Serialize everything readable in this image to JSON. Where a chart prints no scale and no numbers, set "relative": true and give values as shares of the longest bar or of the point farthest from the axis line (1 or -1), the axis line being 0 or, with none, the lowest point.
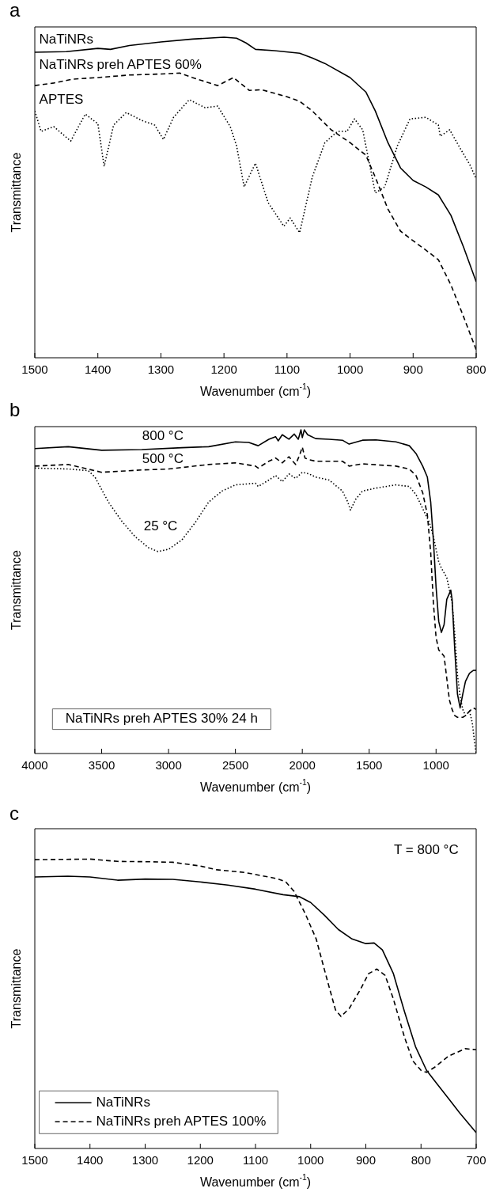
{
  "chart_data": [
    {
      "type": "line",
      "title": "a",
      "xlabel": "Wavenumber (cm$^{-1}$)",
      "ylabel": "Transmittance",
      "relative": true,
      "xlim": [
        1500,
        800
      ],
      "xticks": [
        1500,
        1400,
        1300,
        1200,
        1100,
        1000,
        900,
        800
      ],
      "series": [
        {
          "name": "NaTiNRs",
          "color": "#000000",
          "line_style": "solid",
          "x": [
            1500,
            1450,
            1400,
            1380,
            1350,
            1300,
            1250,
            1200,
            1180,
            1165,
            1150,
            1120,
            1080,
            1060,
            1040,
            1000,
            975,
            960,
            940,
            920,
            900,
            880,
            860,
            840,
            820,
            800
          ],
          "values": [
            0.953,
            0.955,
            0.965,
            0.962,
            0.974,
            0.985,
            0.994,
            1.0,
            0.997,
            0.982,
            0.962,
            0.958,
            0.95,
            0.935,
            0.918,
            0.874,
            0.829,
            0.77,
            0.671,
            0.592,
            0.553,
            0.533,
            0.508,
            0.444,
            0.345,
            0.237
          ]
        },
        {
          "name": "NaTiNRs preh APTES 60%",
          "color": "#000000",
          "line_style": "dashed",
          "x": [
            1500,
            1470,
            1440,
            1400,
            1350,
            1300,
            1270,
            1250,
            1210,
            1185,
            1160,
            1140,
            1100,
            1080,
            1060,
            1030,
            1000,
            975,
            960,
            940,
            920,
            900,
            880,
            860,
            840,
            820,
            800
          ],
          "values": [
            0.849,
            0.857,
            0.869,
            0.874,
            0.882,
            0.885,
            0.888,
            0.874,
            0.849,
            0.874,
            0.834,
            0.836,
            0.814,
            0.8,
            0.77,
            0.711,
            0.671,
            0.632,
            0.563,
            0.464,
            0.395,
            0.365,
            0.336,
            0.306,
            0.227,
            0.128,
            0.025
          ]
        },
        {
          "name": "APTES",
          "color": "#000000",
          "line_style": "dotted",
          "x": [
            1500,
            1490,
            1470,
            1443,
            1420,
            1400,
            1390,
            1375,
            1355,
            1330,
            1310,
            1296,
            1280,
            1255,
            1230,
            1210,
            1190,
            1180,
            1168,
            1150,
            1130,
            1105,
            1095,
            1080,
            1060,
            1040,
            1020,
            1005,
            993,
            980,
            960,
            945,
            925,
            905,
            880,
            860,
            857,
            842,
            825,
            810,
            800
          ],
          "values": [
            0.77,
            0.706,
            0.721,
            0.676,
            0.76,
            0.73,
            0.597,
            0.726,
            0.765,
            0.74,
            0.726,
            0.681,
            0.75,
            0.805,
            0.78,
            0.785,
            0.721,
            0.661,
            0.533,
            0.607,
            0.484,
            0.41,
            0.436,
            0.39,
            0.563,
            0.671,
            0.706,
            0.706,
            0.745,
            0.711,
            0.514,
            0.533,
            0.661,
            0.745,
            0.75,
            0.726,
            0.691,
            0.711,
            0.652,
            0.602,
            0.558
          ]
        }
      ]
    },
    {
      "type": "line",
      "title": "b",
      "xlabel": "Wavenumber (cm$^{-1}$)",
      "ylabel": "Transmittance",
      "relative": true,
      "xlim": [
        4000,
        700
      ],
      "xticks": [
        4000,
        3500,
        3000,
        2500,
        2000,
        1500,
        1000
      ],
      "series": [
        {
          "name": "800 °C",
          "color": "#000000",
          "line_style": "solid",
          "x": [
            4000,
            3750,
            3500,
            3200,
            2900,
            2700,
            2500,
            2400,
            2330,
            2250,
            2200,
            2180,
            2150,
            2100,
            2060,
            2030,
            2010,
            2000,
            1985,
            1960,
            1900,
            1800,
            1700,
            1650,
            1550,
            1450,
            1300,
            1200,
            1150,
            1100,
            1065,
            1040,
            1020,
            1000,
            980,
            960,
            940,
            920,
            900,
            890,
            880,
            860,
            840,
            820,
            800,
            780,
            750,
            720,
            700
          ],
          "values": [
            0.942,
            0.948,
            0.937,
            0.939,
            0.945,
            0.948,
            0.963,
            0.961,
            0.951,
            0.971,
            0.979,
            0.966,
            0.985,
            0.971,
            0.987,
            0.971,
            1.0,
            0.976,
            1.0,
            0.985,
            0.973,
            0.971,
            0.968,
            0.956,
            0.968,
            0.969,
            0.963,
            0.951,
            0.927,
            0.888,
            0.854,
            0.777,
            0.66,
            0.515,
            0.408,
            0.374,
            0.398,
            0.476,
            0.495,
            0.505,
            0.476,
            0.32,
            0.184,
            0.141,
            0.184,
            0.223,
            0.248,
            0.257,
            0.257
          ]
        },
        {
          "name": "500 °C",
          "color": "#000000",
          "line_style": "dashed",
          "x": [
            4000,
            3750,
            3500,
            3200,
            3000,
            2700,
            2500,
            2350,
            2330,
            2250,
            2200,
            2150,
            2100,
            2050,
            2020,
            2000,
            1980,
            1950,
            1900,
            1700,
            1650,
            1550,
            1300,
            1200,
            1150,
            1100,
            1065,
            1040,
            1020,
            1000,
            980,
            960,
            940,
            920,
            900,
            880,
            860,
            840,
            800,
            780,
            750,
            720,
            700
          ],
          "values": [
            0.888,
            0.893,
            0.869,
            0.876,
            0.879,
            0.893,
            0.898,
            0.888,
            0.882,
            0.903,
            0.913,
            0.898,
            0.917,
            0.893,
            0.922,
            0.947,
            0.913,
            0.908,
            0.903,
            0.903,
            0.888,
            0.895,
            0.888,
            0.879,
            0.859,
            0.806,
            0.738,
            0.621,
            0.466,
            0.359,
            0.32,
            0.311,
            0.301,
            0.233,
            0.165,
            0.136,
            0.117,
            0.112,
            0.112,
            0.117,
            0.131,
            0.141,
            0.136
          ]
        },
        {
          "name": "25 °C",
          "color": "#000000",
          "line_style": "dotted",
          "x": [
            4000,
            3750,
            3600,
            3550,
            3450,
            3350,
            3250,
            3150,
            3080,
            3000,
            2900,
            2800,
            2700,
            2600,
            2500,
            2350,
            2330,
            2250,
            2200,
            2150,
            2100,
            2050,
            2000,
            1950,
            1900,
            1800,
            1700,
            1660,
            1640,
            1600,
            1550,
            1450,
            1300,
            1200,
            1150,
            1100,
            1050,
            1020,
            1000,
            980,
            960,
            920,
            900,
            880,
            860,
            840,
            820,
            800,
            780,
            750,
            730,
            710,
            700
          ],
          "values": [
            0.882,
            0.879,
            0.874,
            0.854,
            0.777,
            0.718,
            0.67,
            0.636,
            0.624,
            0.631,
            0.66,
            0.714,
            0.777,
            0.811,
            0.83,
            0.835,
            0.825,
            0.845,
            0.859,
            0.84,
            0.864,
            0.85,
            0.869,
            0.864,
            0.854,
            0.845,
            0.811,
            0.777,
            0.752,
            0.786,
            0.811,
            0.82,
            0.83,
            0.825,
            0.8,
            0.757,
            0.714,
            0.67,
            0.631,
            0.592,
            0.573,
            0.544,
            0.505,
            0.466,
            0.369,
            0.243,
            0.175,
            0.136,
            0.117,
            0.131,
            0.097,
            0.029,
            0.0
          ]
        }
      ],
      "annotations": [
        "NaTiNRs preh APTES 30% 24 h"
      ]
    },
    {
      "type": "line",
      "title": "c",
      "xlabel": "Wavenumber (cm$^{-1}$)",
      "ylabel": "Transmittance",
      "relative": true,
      "xlim": [
        1500,
        700
      ],
      "xticks": [
        1500,
        1400,
        1300,
        1200,
        1100,
        1000,
        900,
        800,
        700
      ],
      "legend": "bottom left",
      "series": [
        {
          "name": "NaTiNRs",
          "color": "#000000",
          "line_style": "solid",
          "x": [
            1500,
            1440,
            1400,
            1350,
            1300,
            1250,
            1200,
            1150,
            1100,
            1050,
            1020,
            1000,
            975,
            950,
            925,
            900,
            885,
            870,
            850,
            830,
            810,
            790,
            770,
            750,
            730,
            700
          ],
          "values": [
            0.938,
            0.941,
            0.938,
            0.927,
            0.931,
            0.93,
            0.921,
            0.91,
            0.896,
            0.877,
            0.87,
            0.85,
            0.806,
            0.757,
            0.724,
            0.708,
            0.71,
            0.686,
            0.604,
            0.473,
            0.352,
            0.27,
            0.221,
            0.172,
            0.123,
            0.055
          ]
        },
        {
          "name": "NaTiNRs preh APTES 100%",
          "color": "#000000",
          "line_style": "dashed",
          "x": [
            1500,
            1400,
            1350,
            1300,
            1250,
            1200,
            1170,
            1120,
            1090,
            1060,
            1045,
            1030,
            1010,
            990,
            970,
            955,
            945,
            930,
            910,
            895,
            880,
            865,
            850,
            830,
            815,
            800,
            790,
            775,
            750,
            720,
            700
          ],
          "values": [
            0.998,
            1.0,
            0.992,
            0.991,
            0.989,
            0.976,
            0.963,
            0.954,
            0.943,
            0.932,
            0.921,
            0.888,
            0.812,
            0.724,
            0.582,
            0.479,
            0.456,
            0.484,
            0.549,
            0.604,
            0.62,
            0.598,
            0.516,
            0.385,
            0.303,
            0.27,
            0.263,
            0.281,
            0.319,
            0.345,
            0.341
          ]
        }
      ],
      "annotations": [
        "T = 800 °C"
      ]
    }
  ]
}
